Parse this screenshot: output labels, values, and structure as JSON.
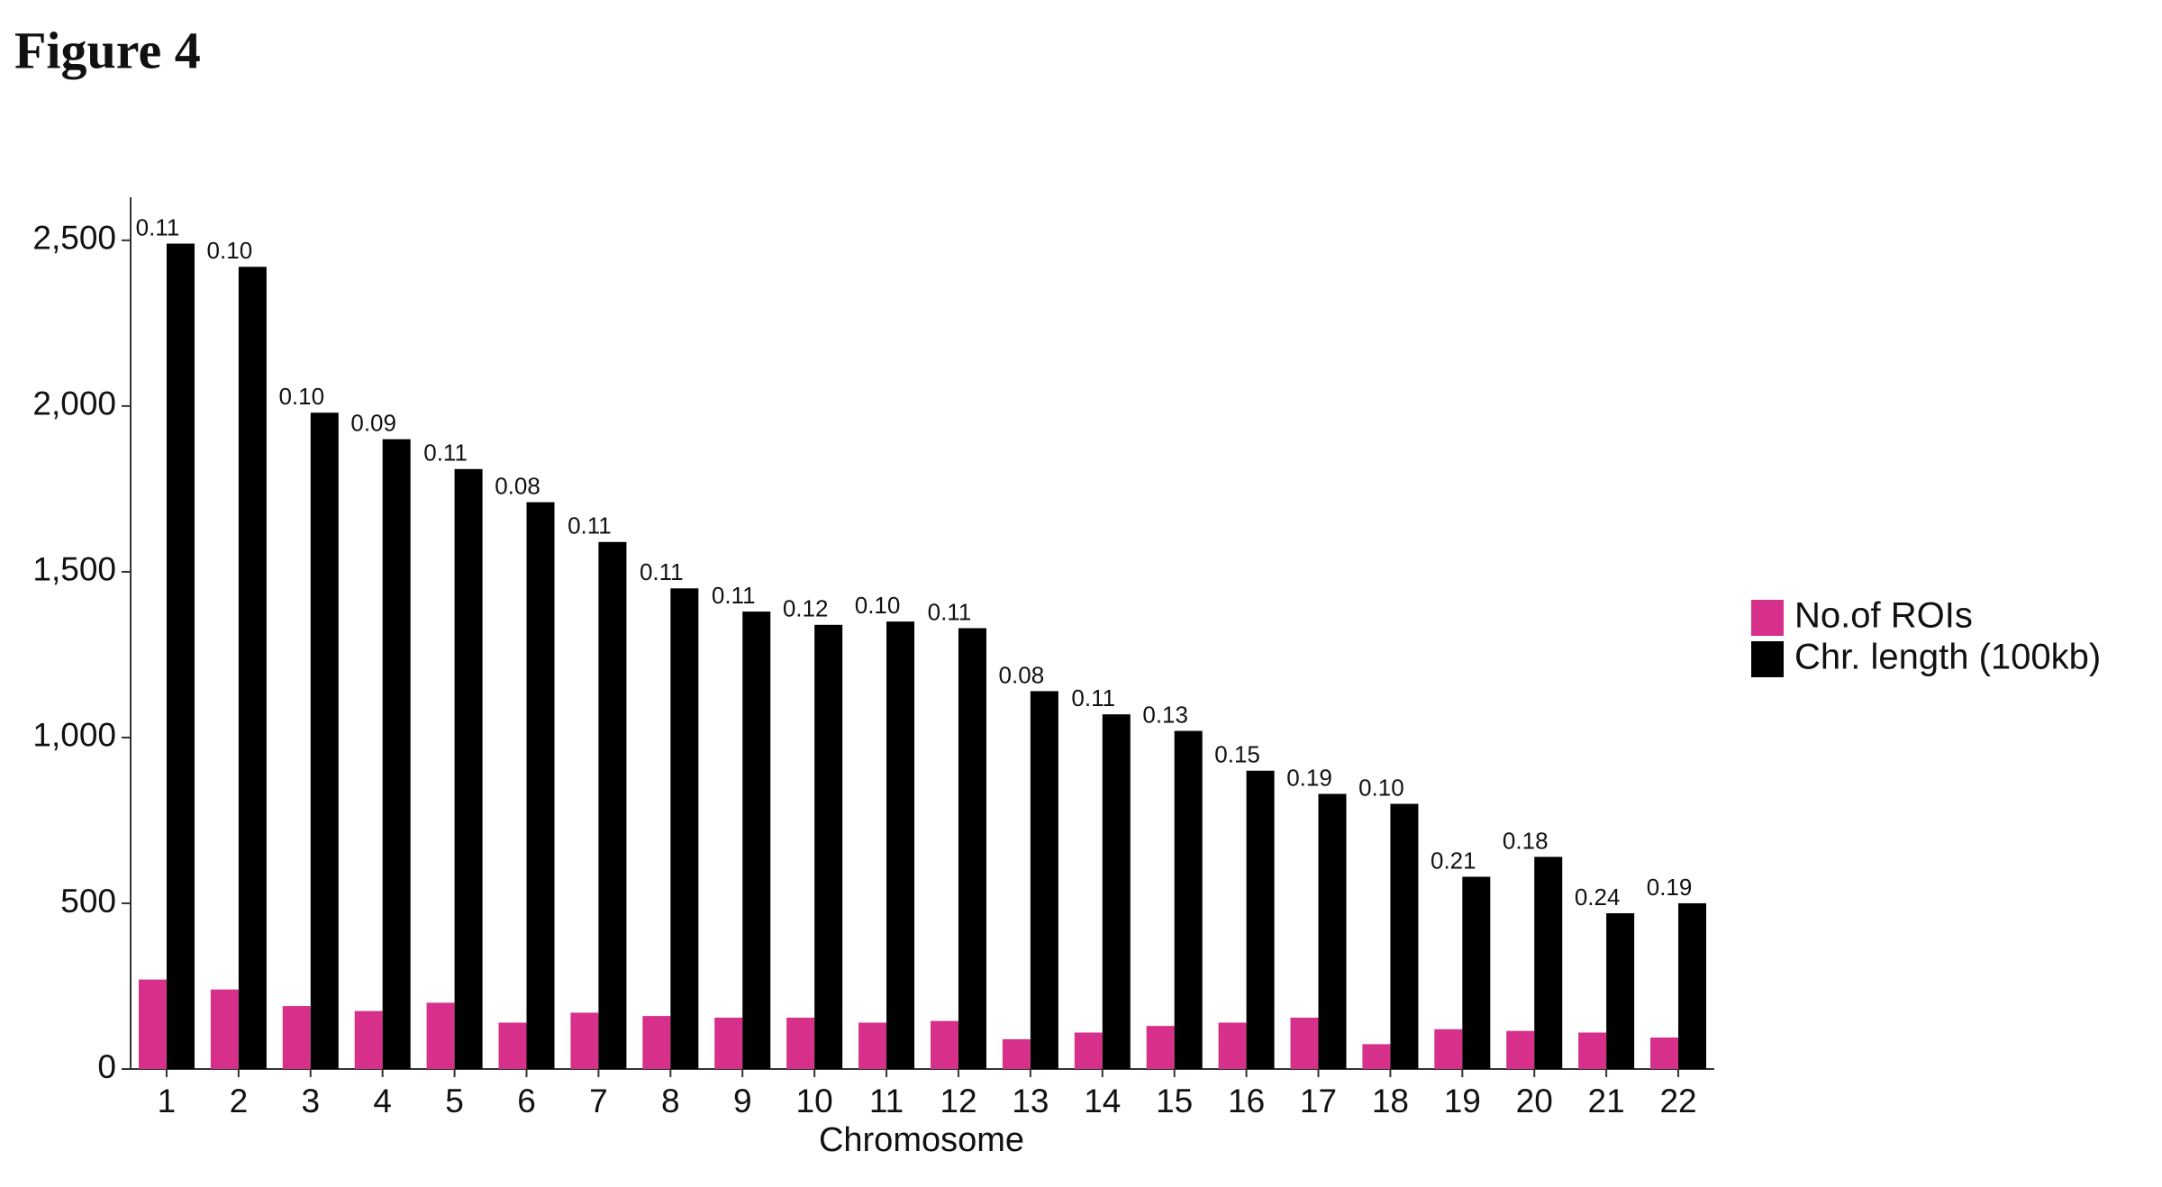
{
  "figure_label": "Figure 4",
  "chart_data": {
    "type": "grouped_bar",
    "x_label": "Chromosome",
    "categories": [
      "1",
      "2",
      "3",
      "4",
      "5",
      "6",
      "7",
      "8",
      "9",
      "10",
      "11",
      "12",
      "13",
      "14",
      "15",
      "16",
      "17",
      "18",
      "19",
      "20",
      "21",
      "22"
    ],
    "series": [
      {
        "name": "No.of ROIs",
        "color": "#d6308a",
        "values": [
          270,
          240,
          190,
          175,
          200,
          140,
          170,
          160,
          155,
          155,
          140,
          145,
          90,
          110,
          130,
          140,
          155,
          75,
          120,
          115,
          110,
          95
        ]
      },
      {
        "name": "Chr. length (100kb)",
        "color": "#000000",
        "values": [
          2490,
          2420,
          1980,
          1900,
          1810,
          1710,
          1590,
          1450,
          1380,
          1340,
          1350,
          1330,
          1140,
          1070,
          1020,
          900,
          830,
          800,
          580,
          640,
          470,
          500
        ],
        "ratio_labels": [
          "0.11",
          "0.10",
          "0.10",
          "0.09",
          "0.11",
          "0.08",
          "0.11",
          "0.11",
          "0.11",
          "0.12",
          "0.10",
          "0.11",
          "0.08",
          "0.11",
          "0.13",
          "0.15",
          "0.19",
          "0.10",
          "0.21",
          "0.18",
          "0.24",
          "0.19"
        ]
      }
    ],
    "ylim": [
      0,
      2630
    ],
    "yticks": [
      0,
      500,
      {
        "value": 1000,
        "label": "1,000"
      },
      {
        "value": 1500,
        "label": "1,500"
      },
      {
        "value": 2000,
        "label": "2,000"
      },
      {
        "value": 2500,
        "label": "2,500"
      }
    ],
    "grid": false,
    "legend": "right"
  }
}
